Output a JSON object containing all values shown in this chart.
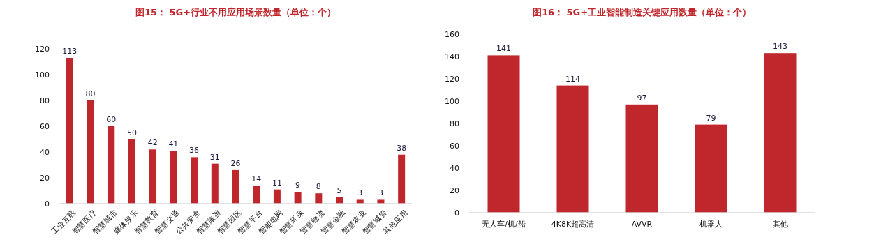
{
  "chart_data": [
    {
      "type": "bar",
      "title": "图15： 5G+行业不用应用场景数量（单位：个）",
      "categories": [
        "工业互联",
        "智慧医疗",
        "智慧城市",
        "媒体娱乐",
        "智慧教育",
        "智慧交通",
        "公共安全",
        "智慧旅游",
        "智慧园区",
        "智慧平台",
        "智能电网",
        "智慧环保",
        "智慧物流",
        "智慧金融",
        "智慧农业",
        "智慧城管",
        "其他应用"
      ],
      "values": [
        113,
        80,
        60,
        50,
        42,
        41,
        36,
        31,
        26,
        14,
        11,
        9,
        8,
        5,
        3,
        3,
        38
      ],
      "color": "#c0272d",
      "ylim": [
        0,
        120
      ],
      "yticks": [
        0,
        20,
        40,
        60,
        80,
        100,
        120
      ],
      "grid": false,
      "data_labels": true
    },
    {
      "type": "bar",
      "title": "图16： 5G+工业智能制造关键应用数量（单位：个）",
      "categories": [
        "无人车/机/船",
        "4K8K超高清",
        "AVVR",
        "机器人",
        "其他"
      ],
      "values": [
        141,
        114,
        97,
        79,
        143
      ],
      "color": "#c0272d",
      "ylim": [
        0,
        160
      ],
      "yticks": [
        0,
        20,
        40,
        60,
        80,
        100,
        120,
        140,
        160
      ],
      "grid": false,
      "data_labels": true
    }
  ]
}
